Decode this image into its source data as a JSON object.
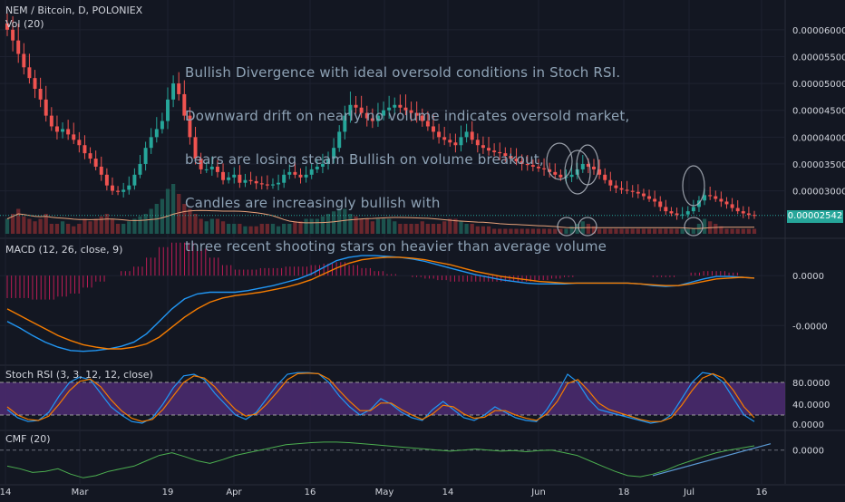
{
  "header": {
    "symbol_line": "NEM / Bitcoin, D, POLONIEX",
    "volume_line": "Vol (20)"
  },
  "annotation": {
    "lines": [
      "Bullish Divergence with ideal oversold conditions in Stoch RSI.",
      "Downward drift on nearly no volume indicates oversold market,",
      "bears are losing steam Bullish on volume breakout,",
      "Candles are increasingly bullish with",
      "three recent shooting stars on heavier than average volume"
    ]
  },
  "last_price_label": "0.00002542",
  "colors": {
    "background": "#131722",
    "up": "#26a69a",
    "down": "#ef5350",
    "macd_line": "#2196f3",
    "signal_line": "#f57c00",
    "stoch_k": "#2196f3",
    "stoch_d": "#f57c00",
    "stoch_band": "#4a2a6e",
    "cmf_line": "#4caf50",
    "grid": "#1e2230",
    "axis_text": "#d1d4dc",
    "annotation_text": "#8ea2b5",
    "hand_drawn": "#b0b6c0",
    "trendline": "#5b9bd5"
  },
  "x_axis_labels": [
    "14",
    "Mar",
    "19",
    "Apr",
    "16",
    "May",
    "14",
    "Jun",
    "18",
    "Jul",
    "16"
  ],
  "chart_data": [
    {
      "type": "candlestick",
      "panel": "price",
      "title": "NEM / Bitcoin, D, POLONIEX",
      "y_tick_labels": [
        "0.00006000",
        "0.00005500",
        "0.00005000",
        "0.00004500",
        "0.00004000",
        "0.00003500",
        "0.00003000"
      ],
      "ylim": [
        2.2e-05,
        6.25e-05
      ],
      "last_price": 2.542e-05,
      "x_range": [
        "2018-02-14",
        "2018-07-15"
      ],
      "closes": [
        6e-05,
        5.8e-05,
        5.55e-05,
        5.3e-05,
        5.1e-05,
        4.9e-05,
        4.7e-05,
        4.4e-05,
        4.2e-05,
        4.1e-05,
        4.15e-05,
        4.05e-05,
        3.95e-05,
        3.85e-05,
        3.7e-05,
        3.6e-05,
        3.45e-05,
        3.3e-05,
        3.1e-05,
        3e-05,
        2.98e-05,
        3.02e-05,
        3.1e-05,
        3.3e-05,
        3.5e-05,
        3.8e-05,
        4e-05,
        4.15e-05,
        4.3e-05,
        4.7e-05,
        5e-05,
        4.8e-05,
        4.4e-05,
        4e-05,
        3.6e-05,
        3.4e-05,
        3.4e-05,
        3.45e-05,
        3.35e-05,
        3.2e-05,
        3.25e-05,
        3.3e-05,
        3.15e-05,
        3.2e-05,
        3.18e-05,
        3.14e-05,
        3.12e-05,
        3.1e-05,
        3.12e-05,
        3.15e-05,
        3.3e-05,
        3.35e-05,
        3.3e-05,
        3.25e-05,
        3.3e-05,
        3.4e-05,
        3.45e-05,
        3.5e-05,
        3.6e-05,
        3.8e-05,
        4.1e-05,
        4.4e-05,
        4.6e-05,
        4.55e-05,
        4.45e-05,
        4.35e-05,
        4.3e-05,
        4.4e-05,
        4.5e-05,
        4.55e-05,
        4.6e-05,
        4.55e-05,
        4.5e-05,
        4.45e-05,
        4.4e-05,
        4.3e-05,
        4.2e-05,
        4.1e-05,
        4e-05,
        3.95e-05,
        3.9e-05,
        3.85e-05,
        4e-05,
        4.1e-05,
        3.95e-05,
        3.85e-05,
        3.8e-05,
        3.75e-05,
        3.72e-05,
        3.7e-05,
        3.65e-05,
        3.6e-05,
        3.55e-05,
        3.5e-05,
        3.48e-05,
        3.45e-05,
        3.42e-05,
        3.4e-05,
        3.35e-05,
        3.3e-05,
        3.25e-05,
        3.26e-05,
        3.3e-05,
        3.4e-05,
        3.5e-05,
        3.45e-05,
        3.4e-05,
        3.3e-05,
        3.2e-05,
        3.1e-05,
        3.05e-05,
        3.02e-05,
        3e-05,
        2.98e-05,
        2.95e-05,
        2.9e-05,
        2.85e-05,
        2.8e-05,
        2.7e-05,
        2.62e-05,
        2.58e-05,
        2.55e-05,
        2.56e-05,
        2.62e-05,
        2.7e-05,
        2.82e-05,
        2.92e-05,
        2.9e-05,
        2.85e-05,
        2.8e-05,
        2.75e-05,
        2.68e-05,
        2.62e-05,
        2.58e-05,
        2.55e-05,
        2.54e-05
      ]
    },
    {
      "type": "bar",
      "panel": "volume",
      "title": "Vol (20)",
      "relative_volumes": [
        0.3,
        0.4,
        0.5,
        0.35,
        0.3,
        0.25,
        0.3,
        0.4,
        0.2,
        0.2,
        0.25,
        0.2,
        0.15,
        0.2,
        0.3,
        0.25,
        0.3,
        0.35,
        0.4,
        0.3,
        0.2,
        0.2,
        0.25,
        0.3,
        0.35,
        0.4,
        0.5,
        0.6,
        0.7,
        0.9,
        1.0,
        0.8,
        0.6,
        0.5,
        0.4,
        0.3,
        0.25,
        0.3,
        0.3,
        0.25,
        0.2,
        0.2,
        0.2,
        0.15,
        0.15,
        0.15,
        0.2,
        0.2,
        0.2,
        0.15,
        0.2,
        0.2,
        0.25,
        0.25,
        0.3,
        0.3,
        0.3,
        0.35,
        0.4,
        0.45,
        0.5,
        0.5,
        0.4,
        0.35,
        0.3,
        0.3,
        0.25,
        0.3,
        0.3,
        0.3,
        0.25,
        0.2,
        0.2,
        0.2,
        0.2,
        0.25,
        0.2,
        0.2,
        0.2,
        0.25,
        0.3,
        0.3,
        0.25,
        0.2,
        0.2,
        0.15,
        0.15,
        0.15,
        0.1,
        0.1,
        0.1,
        0.1,
        0.1,
        0.1,
        0.1,
        0.1,
        0.1,
        0.1,
        0.1,
        0.1,
        0.1,
        0.1,
        0.15,
        0.2,
        0.25,
        0.2,
        0.15,
        0.1,
        0.1,
        0.1,
        0.1,
        0.1,
        0.1,
        0.1,
        0.1,
        0.1,
        0.1,
        0.1,
        0.1,
        0.1,
        0.1,
        0.1,
        0.1,
        0.1,
        0.1,
        0.2,
        0.3,
        0.25,
        0.2,
        0.15,
        0.1,
        0.1,
        0.1,
        0.1,
        0.1,
        0.1
      ]
    },
    {
      "type": "line",
      "panel": "macd",
      "title": "MACD (12, 26, close, 9)",
      "y_tick_labels": [
        "0.0000",
        "-0.0000"
      ],
      "ylim": [
        -1.0,
        0.35
      ],
      "series": [
        {
          "role": "macd",
          "values": [
            -0.55,
            -0.63,
            -0.72,
            -0.8,
            -0.86,
            -0.9,
            -0.91,
            -0.9,
            -0.88,
            -0.85,
            -0.8,
            -0.7,
            -0.55,
            -0.4,
            -0.28,
            -0.22,
            -0.2,
            -0.2,
            -0.2,
            -0.18,
            -0.15,
            -0.12,
            -0.08,
            -0.04,
            0.02,
            0.1,
            0.18,
            0.22,
            0.24,
            0.24,
            0.23,
            0.22,
            0.2,
            0.17,
            0.13,
            0.09,
            0.05,
            0.01,
            -0.02,
            -0.05,
            -0.07,
            -0.09,
            -0.1,
            -0.1,
            -0.1,
            -0.09,
            -0.09,
            -0.09,
            -0.09,
            -0.09,
            -0.1,
            -0.12,
            -0.13,
            -0.12,
            -0.08,
            -0.04,
            -0.01,
            -0.01,
            -0.02,
            -0.03
          ]
        },
        {
          "role": "signal",
          "values": [
            -0.4,
            -0.48,
            -0.56,
            -0.64,
            -0.72,
            -0.78,
            -0.83,
            -0.86,
            -0.88,
            -0.88,
            -0.86,
            -0.82,
            -0.74,
            -0.62,
            -0.5,
            -0.4,
            -0.32,
            -0.27,
            -0.24,
            -0.22,
            -0.2,
            -0.17,
            -0.14,
            -0.1,
            -0.05,
            0.02,
            0.09,
            0.15,
            0.19,
            0.21,
            0.22,
            0.22,
            0.21,
            0.19,
            0.16,
            0.13,
            0.09,
            0.05,
            0.02,
            -0.01,
            -0.03,
            -0.05,
            -0.07,
            -0.08,
            -0.09,
            -0.09,
            -0.09,
            -0.09,
            -0.09,
            -0.09,
            -0.1,
            -0.11,
            -0.12,
            -0.12,
            -0.1,
            -0.07,
            -0.04,
            -0.03,
            -0.02,
            -0.03
          ]
        }
      ]
    },
    {
      "type": "line",
      "panel": "stoch_rsi",
      "title": "Stoch RSI (3, 3, 12, 12, close)",
      "y_tick_labels": [
        "80.0000",
        "40.0000",
        "0.0000"
      ],
      "ylim": [
        0,
        100
      ],
      "bands": [
        20,
        80
      ],
      "series": [
        {
          "role": "k",
          "values": [
            30,
            15,
            8,
            10,
            25,
            55,
            80,
            90,
            85,
            60,
            35,
            20,
            8,
            5,
            15,
            40,
            70,
            92,
            95,
            85,
            60,
            40,
            20,
            12,
            25,
            50,
            75,
            95,
            98,
            98,
            96,
            80,
            55,
            35,
            20,
            30,
            50,
            40,
            25,
            15,
            10,
            30,
            45,
            30,
            15,
            10,
            20,
            35,
            25,
            15,
            10,
            8,
            30,
            60,
            95,
            80,
            50,
            30,
            25,
            20,
            15,
            10,
            5,
            8,
            20,
            50,
            80,
            98,
            95,
            80,
            50,
            20,
            8
          ]
        },
        {
          "role": "d",
          "values": [
            35,
            20,
            12,
            10,
            18,
            40,
            65,
            82,
            86,
            72,
            48,
            28,
            14,
            8,
            12,
            30,
            55,
            80,
            92,
            88,
            72,
            50,
            30,
            18,
            22,
            40,
            62,
            85,
            96,
            97,
            96,
            86,
            65,
            45,
            28,
            28,
            42,
            42,
            30,
            20,
            12,
            22,
            38,
            35,
            22,
            14,
            16,
            28,
            28,
            20,
            14,
            10,
            22,
            45,
            78,
            85,
            65,
            42,
            30,
            24,
            18,
            12,
            8,
            8,
            15,
            38,
            65,
            88,
            96,
            88,
            65,
            35,
            15
          ]
        }
      ]
    },
    {
      "type": "line",
      "panel": "cmf",
      "title": "CMF (20)",
      "y_tick_labels": [
        "0.0000"
      ],
      "ylim": [
        -0.6,
        0.25
      ],
      "series": [
        {
          "role": "cmf",
          "values": [
            -0.3,
            -0.35,
            -0.42,
            -0.4,
            -0.35,
            -0.45,
            -0.52,
            -0.48,
            -0.4,
            -0.35,
            -0.3,
            -0.2,
            -0.1,
            -0.05,
            -0.12,
            -0.2,
            -0.25,
            -0.18,
            -0.1,
            -0.05,
            0.0,
            0.05,
            0.1,
            0.12,
            0.14,
            0.15,
            0.15,
            0.14,
            0.12,
            0.1,
            0.08,
            0.06,
            0.04,
            0.02,
            0.0,
            -0.02,
            0.0,
            0.02,
            0.0,
            -0.02,
            -0.01,
            -0.03,
            -0.01,
            0.0,
            -0.05,
            -0.1,
            -0.2,
            -0.3,
            -0.4,
            -0.48,
            -0.5,
            -0.45,
            -0.38,
            -0.28,
            -0.2,
            -0.12,
            -0.05,
            0.0,
            0.04,
            0.08
          ]
        }
      ]
    }
  ]
}
